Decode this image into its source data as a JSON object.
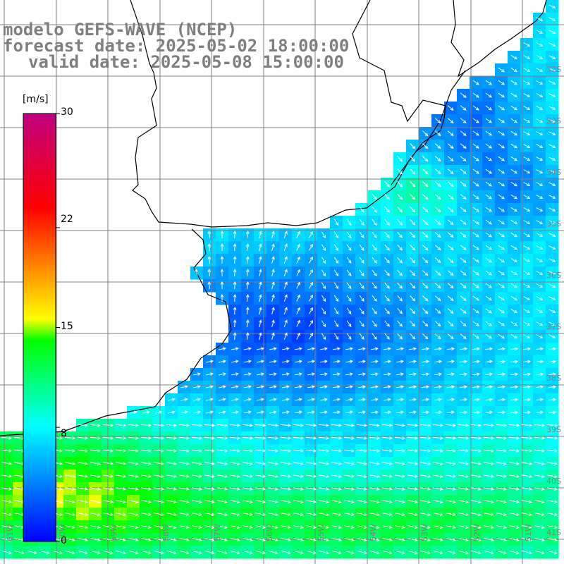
{
  "titles": {
    "line1": "modelo GEFS-WAVE (NCEP)",
    "line2": "forecast date: 2025-05-02 18:00:00",
    "line3": "valid date: 2025-05-08 15:00:00"
  },
  "colorbar": {
    "unit": "[m/s]",
    "ticks": [
      "30",
      "22",
      "15",
      "8",
      "0"
    ],
    "tick_values": [
      30,
      22,
      15,
      8,
      0
    ],
    "min": 0,
    "max": 30,
    "colors": [
      "#0000ff",
      "#00ffff",
      "#00ff00",
      "#ffff00",
      "#ff0000",
      "#c00080"
    ]
  },
  "grid": {
    "lat_labels": [
      "32S",
      "33S",
      "34S",
      "35S",
      "36S",
      "37S",
      "38S",
      "39S",
      "40S",
      "41S"
    ],
    "lon_labels": [
      "61W",
      "60W",
      "59W",
      "58W",
      "57W",
      "56W",
      "55W",
      "54W",
      "53W",
      "52W",
      "51W"
    ]
  },
  "colors": {
    "land": "#ffffff",
    "coast": "#000000",
    "grid_line": "#808080",
    "arrow": "#ffffff",
    "title_text": "#7f7f7f"
  }
}
